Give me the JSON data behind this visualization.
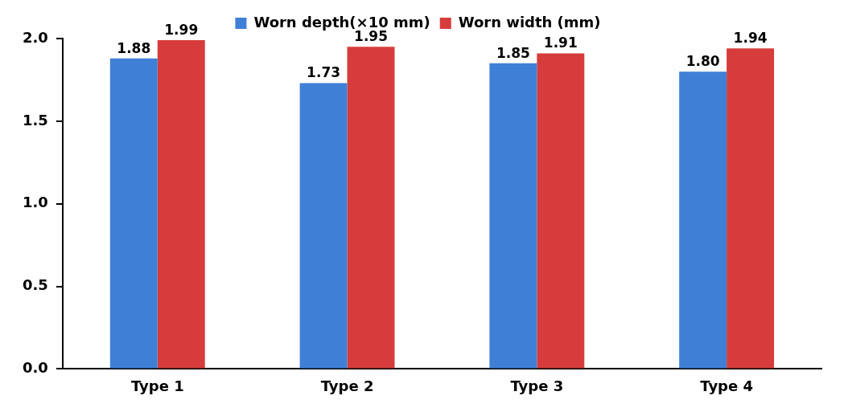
{
  "chart_data": {
    "type": "bar",
    "categories": [
      "Type 1",
      "Type 2",
      "Type 3",
      "Type 4"
    ],
    "series": [
      {
        "name": "Worn depth(×10 mm)",
        "color": "#3f7fd6",
        "values": [
          1.88,
          1.73,
          1.85,
          1.8
        ],
        "value_labels": [
          "1.88",
          "1.73",
          "1.85",
          "1.80"
        ]
      },
      {
        "name": "Worn width (mm)",
        "color": "#d63c3c",
        "values": [
          1.99,
          1.95,
          1.91,
          1.94
        ],
        "value_labels": [
          "1.99",
          "1.95",
          "1.91",
          "1.94"
        ]
      }
    ],
    "ylim": [
      0,
      2
    ],
    "yticks": [
      {
        "value": 0,
        "label": "0.0"
      },
      {
        "value": 0.5,
        "label": "0.5"
      },
      {
        "value": 1,
        "label": "1.0"
      },
      {
        "value": 1.5,
        "label": "1.5"
      },
      {
        "value": 2,
        "label": "2.0"
      }
    ],
    "grid": false,
    "legend": "top",
    "data_labels": true
  }
}
